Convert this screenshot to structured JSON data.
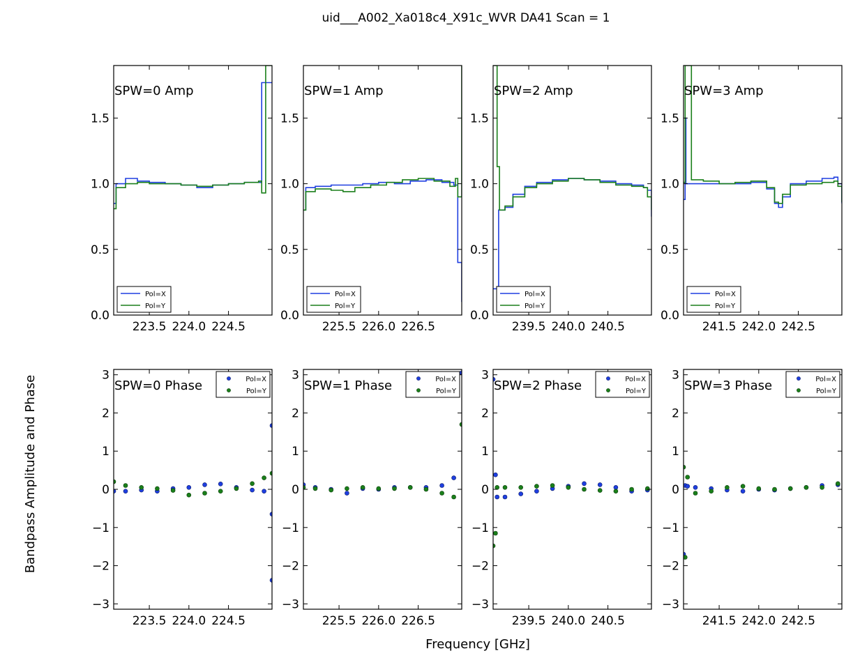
{
  "figure": {
    "title": "uid___A002_Xa018c4_X91c_WVR DA41 Scan = 1",
    "xlabel": "Frequency [GHz]",
    "ylabel": "Bandpass Amplitude and Phase"
  },
  "colors": {
    "pol_x": "#1f3fe0",
    "pol_y": "#1a7f1a"
  },
  "chart_data": [
    {
      "type": "line",
      "label": "SPW=0 Amp",
      "xlim": [
        223.05,
        225.05
      ],
      "ylim": [
        0,
        1.9
      ],
      "xticks": [
        223.5,
        224.0,
        224.5
      ],
      "xtick_labels": [
        "223.5",
        "224.0",
        "224.5"
      ],
      "yticks": [
        0.0,
        0.5,
        1.0,
        1.5
      ],
      "ytick_labels": [
        "0.0",
        "0.5",
        "1.0",
        "1.5"
      ],
      "legend": "lower left",
      "series": [
        {
          "name": "Pol=X",
          "x": [
            223.05,
            223.08,
            223.2,
            223.35,
            223.5,
            223.7,
            223.9,
            224.1,
            224.3,
            224.5,
            224.7,
            224.88,
            224.92,
            225.0,
            225.05
          ],
          "y": [
            0.85,
            1.0,
            1.04,
            1.02,
            1.01,
            1.0,
            0.99,
            0.97,
            0.99,
            1.0,
            1.01,
            1.01,
            1.77,
            1.77,
            1.77
          ]
        },
        {
          "name": "Pol=Y",
          "x": [
            223.05,
            223.08,
            223.2,
            223.35,
            223.5,
            223.7,
            223.9,
            224.1,
            224.3,
            224.5,
            224.7,
            224.88,
            224.92,
            224.97,
            225.0,
            225.05
          ],
          "y": [
            0.81,
            0.97,
            1.0,
            1.01,
            1.0,
            1.0,
            0.99,
            0.98,
            0.99,
            1.0,
            1.01,
            1.02,
            0.93,
            1.9,
            1.9,
            1.9
          ]
        }
      ]
    },
    {
      "type": "line",
      "label": "SPW=1 Amp",
      "xlim": [
        225.05,
        227.05
      ],
      "ylim": [
        0,
        1.9
      ],
      "xticks": [
        225.5,
        226.0,
        226.5
      ],
      "xtick_labels": [
        "225.5",
        "226.0",
        "226.5"
      ],
      "yticks": [
        0.0,
        0.5,
        1.0,
        1.5
      ],
      "ytick_labels": [
        "0.0",
        "0.5",
        "1.0",
        "1.5"
      ],
      "legend": "lower left",
      "series": [
        {
          "name": "Pol=X",
          "x": [
            225.05,
            225.08,
            225.2,
            225.4,
            225.6,
            225.8,
            226.0,
            226.2,
            226.4,
            226.6,
            226.8,
            226.95,
            227.0,
            227.05
          ],
          "y": [
            0.8,
            0.97,
            0.98,
            0.99,
            0.99,
            1.0,
            1.01,
            1.0,
            1.02,
            1.03,
            1.01,
            0.99,
            0.4,
            0.1
          ]
        },
        {
          "name": "Pol=Y",
          "x": [
            225.05,
            225.08,
            225.2,
            225.4,
            225.55,
            225.7,
            225.9,
            226.1,
            226.3,
            226.5,
            226.7,
            226.9,
            226.97,
            227.0,
            227.05
          ],
          "y": [
            0.8,
            0.94,
            0.96,
            0.95,
            0.94,
            0.97,
            0.99,
            1.01,
            1.03,
            1.04,
            1.02,
            0.98,
            1.04,
            0.9,
            1.9
          ]
        }
      ]
    },
    {
      "type": "line",
      "label": "SPW=2 Amp",
      "xlim": [
        239.05,
        241.05
      ],
      "ylim": [
        0,
        1.9
      ],
      "xticks": [
        239.5,
        240.0,
        240.5
      ],
      "xtick_labels": [
        "239.5",
        "240.0",
        "240.5"
      ],
      "yticks": [
        0.0,
        0.5,
        1.0,
        1.5
      ],
      "ytick_labels": [
        "0.0",
        "0.5",
        "1.0",
        "1.5"
      ],
      "legend": "lower left",
      "series": [
        {
          "name": "Pol=X",
          "x": [
            239.05,
            239.08,
            239.12,
            239.2,
            239.3,
            239.45,
            239.6,
            239.8,
            240.0,
            240.2,
            240.4,
            240.6,
            240.8,
            240.95,
            241.0,
            241.05
          ],
          "y": [
            0.2,
            0.2,
            0.8,
            0.82,
            0.92,
            0.98,
            1.01,
            1.03,
            1.04,
            1.03,
            1.02,
            1.0,
            0.99,
            0.97,
            0.95,
            0.75
          ]
        },
        {
          "name": "Pol=Y",
          "x": [
            239.05,
            239.07,
            239.1,
            239.13,
            239.2,
            239.3,
            239.45,
            239.6,
            239.8,
            240.0,
            240.2,
            240.4,
            240.6,
            240.8,
            240.95,
            241.0,
            241.05
          ],
          "y": [
            1.9,
            1.9,
            1.13,
            0.8,
            0.83,
            0.9,
            0.97,
            1.0,
            1.02,
            1.04,
            1.03,
            1.01,
            0.99,
            0.98,
            0.97,
            0.9,
            0.8
          ]
        }
      ]
    },
    {
      "type": "line",
      "label": "SPW=3 Amp",
      "xlim": [
        241.05,
        243.05
      ],
      "ylim": [
        0,
        1.9
      ],
      "xticks": [
        241.5,
        242.0,
        242.5
      ],
      "xtick_labels": [
        "241.5",
        "242.0",
        "242.5"
      ],
      "yticks": [
        0.0,
        0.5,
        1.0,
        1.5
      ],
      "ytick_labels": [
        "0.0",
        "0.5",
        "1.0",
        "1.5"
      ],
      "legend": "lower left",
      "series": [
        {
          "name": "Pol=X",
          "x": [
            241.05,
            241.07,
            241.08,
            241.12,
            241.3,
            241.5,
            241.7,
            241.9,
            242.1,
            242.2,
            242.25,
            242.3,
            242.4,
            242.6,
            242.8,
            242.95,
            243.0,
            243.05
          ],
          "y": [
            0.88,
            1.5,
            1.0,
            1.0,
            1.0,
            1.0,
            1.0,
            1.01,
            0.96,
            0.85,
            0.82,
            0.9,
            1.0,
            1.02,
            1.04,
            1.05,
            1.0,
            0.85
          ]
        },
        {
          "name": "Pol=Y",
          "x": [
            241.05,
            241.07,
            241.1,
            241.15,
            241.3,
            241.5,
            241.7,
            241.9,
            242.1,
            242.2,
            242.25,
            242.3,
            242.4,
            242.6,
            242.8,
            242.95,
            243.0,
            243.05
          ],
          "y": [
            1.01,
            1.9,
            1.9,
            1.03,
            1.02,
            1.0,
            1.01,
            1.02,
            0.97,
            0.86,
            0.85,
            0.92,
            0.99,
            1.0,
            1.01,
            1.02,
            0.98,
            0.86
          ]
        }
      ]
    },
    {
      "type": "scatter",
      "label": "SPW=0 Phase",
      "xlim": [
        223.05,
        225.05
      ],
      "ylim": [
        -3.14,
        3.14
      ],
      "xticks": [
        223.5,
        224.0,
        224.5
      ],
      "xtick_labels": [
        "223.5",
        "224.0",
        "224.5"
      ],
      "yticks": [
        -3,
        -2,
        -1,
        0,
        1,
        2,
        3
      ],
      "ytick_labels": [
        "−3",
        "−2",
        "−1",
        "0",
        "1",
        "2",
        "3"
      ],
      "legend": "upper right",
      "series": [
        {
          "name": "Pol=X",
          "x": [
            223.05,
            223.2,
            223.4,
            223.6,
            223.8,
            224.0,
            224.2,
            224.4,
            224.6,
            224.8,
            224.95,
            225.05,
            225.05,
            225.05
          ],
          "y": [
            -0.05,
            -0.05,
            -0.02,
            -0.05,
            0.02,
            0.05,
            0.12,
            0.14,
            0.05,
            -0.02,
            -0.05,
            1.67,
            -0.65,
            -2.38
          ]
        },
        {
          "name": "Pol=Y",
          "x": [
            223.05,
            223.2,
            223.4,
            223.6,
            223.8,
            224.0,
            224.2,
            224.4,
            224.6,
            224.8,
            224.95,
            225.05
          ],
          "y": [
            0.2,
            0.1,
            0.05,
            0.02,
            -0.03,
            -0.15,
            -0.1,
            -0.05,
            0.02,
            0.15,
            0.3,
            0.42
          ]
        }
      ]
    },
    {
      "type": "scatter",
      "label": "SPW=1 Phase",
      "xlim": [
        225.05,
        227.05
      ],
      "ylim": [
        -3.14,
        3.14
      ],
      "xticks": [
        225.5,
        226.0,
        226.5
      ],
      "xtick_labels": [
        "225.5",
        "226.0",
        "226.5"
      ],
      "yticks": [
        -3,
        -2,
        -1,
        0,
        1,
        2,
        3
      ],
      "ytick_labels": [
        "−3",
        "−2",
        "−1",
        "0",
        "1",
        "2",
        "3"
      ],
      "legend": "upper right",
      "series": [
        {
          "name": "Pol=X",
          "x": [
            225.05,
            225.2,
            225.4,
            225.6,
            225.8,
            226.0,
            226.2,
            226.4,
            226.6,
            226.8,
            226.95,
            227.05
          ],
          "y": [
            0.12,
            0.05,
            0.0,
            -0.1,
            0.02,
            0.0,
            0.05,
            0.05,
            0.05,
            0.1,
            0.3,
            3.05
          ]
        },
        {
          "name": "Pol=Y",
          "x": [
            225.05,
            225.2,
            225.4,
            225.6,
            225.8,
            226.0,
            226.2,
            226.4,
            226.6,
            226.8,
            226.95,
            227.05
          ],
          "y": [
            0.05,
            0.02,
            -0.02,
            0.02,
            0.05,
            0.02,
            0.02,
            0.05,
            0.0,
            -0.1,
            -0.2,
            1.7
          ]
        }
      ]
    },
    {
      "type": "scatter",
      "label": "SPW=2 Phase",
      "xlim": [
        239.05,
        241.05
      ],
      "ylim": [
        -3.14,
        3.14
      ],
      "xticks": [
        239.5,
        240.0,
        240.5
      ],
      "xtick_labels": [
        "239.5",
        "240.0",
        "240.5"
      ],
      "yticks": [
        -3,
        -2,
        -1,
        0,
        1,
        2,
        3
      ],
      "ytick_labels": [
        "−3",
        "−2",
        "−1",
        "0",
        "1",
        "2",
        "3"
      ],
      "legend": "upper right",
      "series": [
        {
          "name": "Pol=X",
          "x": [
            239.05,
            239.08,
            239.1,
            239.2,
            239.4,
            239.6,
            239.8,
            240.0,
            240.2,
            240.4,
            240.6,
            240.8,
            241.0
          ],
          "y": [
            2.88,
            0.38,
            -0.2,
            -0.2,
            -0.12,
            -0.05,
            0.02,
            0.08,
            0.15,
            0.12,
            0.05,
            -0.05,
            -0.02
          ]
        },
        {
          "name": "Pol=Y",
          "x": [
            239.05,
            239.08,
            239.1,
            239.2,
            239.4,
            239.6,
            239.8,
            240.0,
            240.2,
            240.4,
            240.6,
            240.8,
            241.0
          ],
          "y": [
            -1.48,
            -1.15,
            0.05,
            0.05,
            0.05,
            0.08,
            0.1,
            0.05,
            0.0,
            -0.03,
            -0.05,
            0.0,
            0.02
          ]
        }
      ]
    },
    {
      "type": "scatter",
      "label": "SPW=3 Phase",
      "xlim": [
        241.05,
        243.05
      ],
      "ylim": [
        -3.14,
        3.14
      ],
      "xticks": [
        241.5,
        242.0,
        242.5
      ],
      "xtick_labels": [
        "241.5",
        "242.0",
        "242.5"
      ],
      "yticks": [
        -3,
        -2,
        -1,
        0,
        1,
        2,
        3
      ],
      "ytick_labels": [
        "−3",
        "−2",
        "−1",
        "0",
        "1",
        "2",
        "3"
      ],
      "legend": "upper right",
      "series": [
        {
          "name": "Pol=X",
          "x": [
            241.05,
            241.07,
            241.1,
            241.2,
            241.4,
            241.6,
            241.8,
            242.0,
            242.2,
            242.4,
            242.6,
            242.8,
            243.0
          ],
          "y": [
            -1.7,
            0.1,
            0.08,
            0.05,
            0.02,
            -0.02,
            -0.05,
            0.0,
            -0.02,
            0.02,
            0.05,
            0.1,
            0.12
          ]
        },
        {
          "name": "Pol=Y",
          "x": [
            241.05,
            241.07,
            241.1,
            241.2,
            241.4,
            241.6,
            241.8,
            242.0,
            242.2,
            242.4,
            242.6,
            242.8,
            243.0
          ],
          "y": [
            0.58,
            -1.78,
            0.32,
            -0.1,
            -0.05,
            0.05,
            0.08,
            0.02,
            0.0,
            0.02,
            0.05,
            0.05,
            0.15
          ]
        }
      ]
    }
  ]
}
